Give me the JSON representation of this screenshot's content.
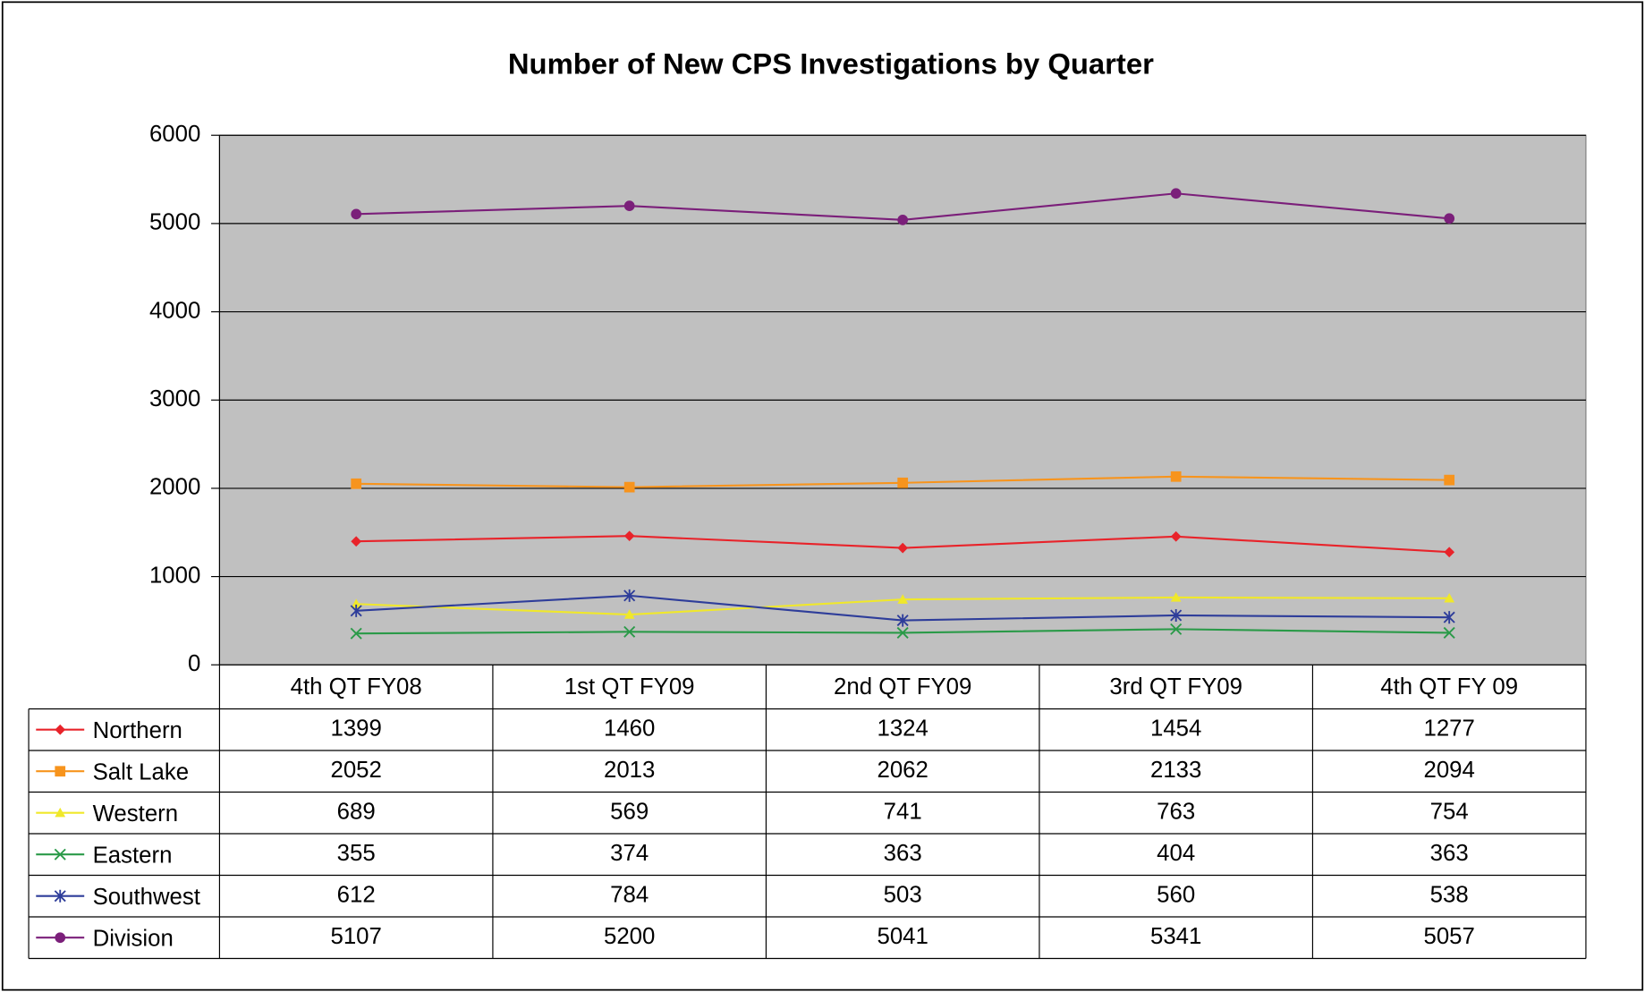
{
  "chart_data": {
    "type": "line",
    "title": "Number of New CPS Investigations by Quarter",
    "categories": [
      "4th QT FY08",
      "1st QT FY09",
      "2nd QT FY09",
      "3rd QT FY09",
      "4th QT FY 09"
    ],
    "series": [
      {
        "name": "Northern",
        "color": "#e8232a",
        "marker": "diamond",
        "values": [
          1399,
          1460,
          1324,
          1454,
          1277
        ]
      },
      {
        "name": "Salt Lake",
        "color": "#f7941d",
        "marker": "square",
        "values": [
          2052,
          2013,
          2062,
          2133,
          2094
        ]
      },
      {
        "name": "Western",
        "color": "#f0e82a",
        "marker": "triangle",
        "values": [
          689,
          569,
          741,
          763,
          754
        ]
      },
      {
        "name": "Eastern",
        "color": "#2a9a48",
        "marker": "x",
        "values": [
          355,
          374,
          363,
          404,
          363
        ]
      },
      {
        "name": "Southwest",
        "color": "#2e3d9a",
        "marker": "star",
        "values": [
          612,
          784,
          503,
          560,
          538
        ]
      },
      {
        "name": "Division",
        "color": "#7b1f7a",
        "marker": "circle",
        "values": [
          5107,
          5200,
          5041,
          5341,
          5057
        ]
      }
    ],
    "ylim": [
      0,
      6000
    ],
    "yticks": [
      0,
      1000,
      2000,
      3000,
      4000,
      5000,
      6000
    ],
    "grid": true,
    "plot_background": "#c0c0c0"
  }
}
